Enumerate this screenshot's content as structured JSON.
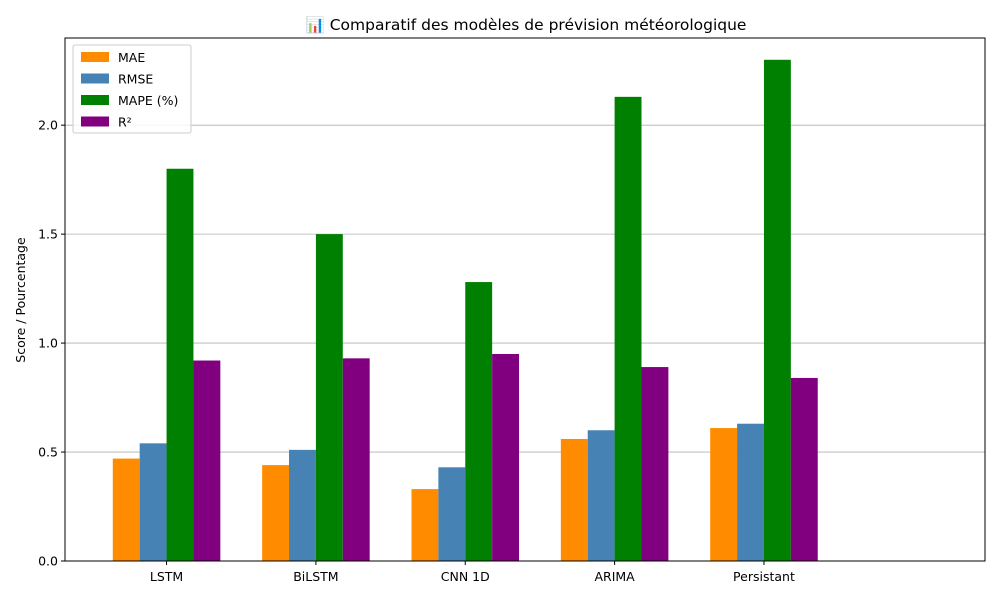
{
  "chart_data": {
    "type": "bar",
    "title": "📊 Comparatif des modèles de prévision météorologique",
    "xlabel": "",
    "ylabel": "Score / Pourcentage",
    "categories": [
      "LSTM",
      "BiLSTM",
      "CNN 1D",
      "ARIMA",
      "Persistant"
    ],
    "series": [
      {
        "name": "MAE",
        "color": "#ff8c00",
        "values": [
          0.47,
          0.44,
          0.33,
          0.56,
          0.61
        ]
      },
      {
        "name": "RMSE",
        "color": "#4682b4",
        "values": [
          0.54,
          0.51,
          0.43,
          0.6,
          0.63
        ]
      },
      {
        "name": "MAPE (%)",
        "color": "#008000",
        "values": [
          1.8,
          1.5,
          1.28,
          2.13,
          2.3
        ]
      },
      {
        "name": "R²",
        "color": "#800080",
        "values": [
          0.92,
          0.93,
          0.95,
          0.89,
          0.84
        ]
      }
    ],
    "ylim": [
      0,
      2.4
    ],
    "yticks": [
      0.0,
      0.5,
      1.0,
      1.5,
      2.0
    ],
    "ytick_labels": [
      "0.0",
      "0.5",
      "1.0",
      "1.5",
      "2.0"
    ],
    "grid": "y",
    "legend_position": "upper-left"
  }
}
